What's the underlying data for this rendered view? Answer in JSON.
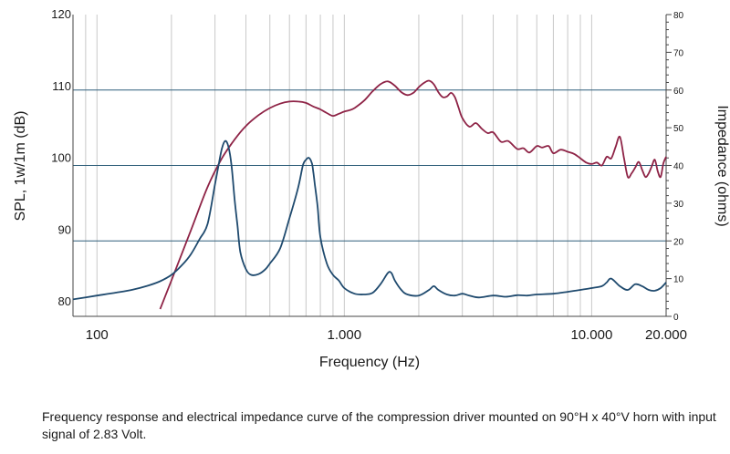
{
  "caption": "Frequency response and electrical impedance curve of the compression driver mounted on 90°H x 40°V horn with input signal of 2.83 Volt.",
  "chart_data": {
    "type": "line",
    "xlabel": "Frequency (Hz)",
    "ylabel_left": "SPL, 1w/1m (dB)",
    "ylabel_right": "Impedance (ohms)",
    "x_scale": "log",
    "xlim": [
      80,
      20000
    ],
    "ylim_left": [
      78,
      120
    ],
    "ylim_right": [
      0,
      80
    ],
    "x_ticks": [
      100,
      1000,
      10000,
      20000
    ],
    "x_tick_labels": [
      "100",
      "1.000",
      "10.000",
      "20.000"
    ],
    "y_left_ticks": [
      80,
      90,
      100,
      110,
      120
    ],
    "y_left_tick_labels": [
      "80",
      "90",
      "100",
      "110",
      "120"
    ],
    "y_right_ticks": [
      0,
      10,
      20,
      30,
      40,
      50,
      60,
      70,
      80
    ],
    "y_right_tick_labels": [
      "0",
      "10",
      "20",
      "30",
      "40",
      "50",
      "60",
      "70",
      "80"
    ],
    "grid": true,
    "colors": {
      "spl": "#8e2346",
      "impedance": "#1f4a6e",
      "hgrid": "#2f5f7a",
      "vgrid": "#c8c8c8",
      "axis": "#444444"
    },
    "series": [
      {
        "key": "spl",
        "axis": "left",
        "x": [
          180,
          200,
          240,
          280,
          320,
          360,
          400,
          450,
          500,
          550,
          600,
          650,
          700,
          750,
          800,
          850,
          900,
          950,
          1000,
          1050,
          1100,
          1200,
          1300,
          1400,
          1500,
          1600,
          1700,
          1800,
          1900,
          2000,
          2100,
          2200,
          2300,
          2400,
          2500,
          2600,
          2700,
          2800,
          2900,
          3000,
          3200,
          3400,
          3600,
          3800,
          4000,
          4300,
          4600,
          5000,
          5300,
          5600,
          6000,
          6300,
          6700,
          7000,
          7500,
          8000,
          8500,
          9000,
          9500,
          10000,
          10500,
          11000,
          11500,
          12000,
          12500,
          13000,
          13500,
          14000,
          14500,
          15000,
          15500,
          16000,
          16500,
          17000,
          17500,
          18000,
          18500,
          19000,
          19500,
          20000
        ],
        "values": [
          79,
          83,
          90,
          96,
          100,
          102.6,
          104.5,
          106,
          107,
          107.6,
          107.9,
          107.9,
          107.7,
          107.2,
          106.8,
          106.3,
          105.9,
          106.2,
          106.5,
          106.7,
          107,
          108,
          109.3,
          110.3,
          110.7,
          110.1,
          109.2,
          108.8,
          109.1,
          109.9,
          110.5,
          110.8,
          110.3,
          109.2,
          108.5,
          108.6,
          109.1,
          108.5,
          107,
          105.6,
          104.4,
          104.9,
          104.1,
          103.5,
          103.6,
          102.3,
          102.4,
          101.3,
          101.4,
          100.8,
          101.7,
          101.5,
          101.7,
          100.7,
          101.2,
          100.9,
          100.6,
          100,
          99.4,
          99.2,
          99.4,
          99,
          100.2,
          100,
          101.6,
          103,
          100.1,
          97.4,
          97.9,
          98.7,
          99.5,
          98.4,
          97.4,
          97.9,
          98.9,
          99.8,
          98.2,
          97.4,
          99.3,
          100.2
        ]
      },
      {
        "key": "impedance",
        "axis": "right",
        "x": [
          80,
          100,
          120,
          140,
          160,
          180,
          200,
          220,
          240,
          260,
          280,
          300,
          310,
          320,
          330,
          340,
          350,
          360,
          370,
          380,
          400,
          420,
          450,
          480,
          500,
          550,
          600,
          650,
          680,
          700,
          720,
          740,
          750,
          760,
          780,
          800,
          850,
          900,
          950,
          1000,
          1100,
          1200,
          1300,
          1400,
          1500,
          1550,
          1600,
          1700,
          1800,
          2000,
          2200,
          2300,
          2400,
          2600,
          2800,
          3000,
          3200,
          3500,
          4000,
          4500,
          5000,
          5500,
          6000,
          7000,
          8000,
          9000,
          10000,
          11000,
          11500,
          12000,
          13000,
          14000,
          15000,
          16000,
          17000,
          18000,
          19000,
          20000
        ],
        "values": [
          4.5,
          5.5,
          6.3,
          7.1,
          8.1,
          9.3,
          11,
          13.5,
          16.5,
          20.5,
          24.5,
          35,
          40,
          44.5,
          46.5,
          45,
          40,
          31,
          24,
          17,
          12.5,
          11,
          11.2,
          12.5,
          14,
          18,
          26,
          34,
          40,
          41.5,
          42,
          40.5,
          38,
          35,
          29,
          21,
          14,
          11,
          9.5,
          7.5,
          6,
          5.8,
          6.2,
          8.5,
          11.5,
          11.5,
          9.5,
          7,
          5.8,
          5.5,
          7,
          8,
          7,
          5.8,
          5.5,
          6,
          5.5,
          5,
          5.5,
          5.2,
          5.6,
          5.5,
          5.8,
          6,
          6.5,
          7,
          7.5,
          8,
          9,
          10,
          8,
          7,
          8.5,
          8,
          7,
          6.8,
          7.5,
          9
        ]
      }
    ]
  }
}
